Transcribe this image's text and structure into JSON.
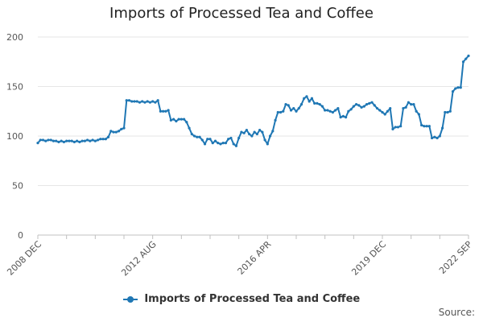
{
  "colors": {
    "series": "#1f77b4",
    "grid": "#e6e6e6",
    "axis": "#c0c0c0",
    "tick_text": "#555555"
  },
  "chart_data": {
    "type": "line",
    "title": "Imports of Processed Tea and Coffee",
    "xlabel": "",
    "ylabel": "",
    "ylim": [
      0,
      200
    ],
    "yticks": [
      0,
      50,
      100,
      150,
      200
    ],
    "x_tick_labels": [
      {
        "label": "2008 DEC",
        "date": "2008-12"
      },
      {
        "label": "2012 AUG",
        "date": "2012-08"
      },
      {
        "label": "2016 APR",
        "date": "2016-04"
      },
      {
        "label": "2019 DEC",
        "date": "2019-12"
      },
      {
        "label": "2022 SEP",
        "date": "2022-09"
      }
    ],
    "grid": true,
    "legend": "bottom",
    "series": [
      {
        "name": "Imports of Processed Tea and Coffee",
        "points": [
          [
            "2008-12",
            93
          ],
          [
            "2009-01",
            96
          ],
          [
            "2009-02",
            96
          ],
          [
            "2009-03",
            95
          ],
          [
            "2009-04",
            96
          ],
          [
            "2009-05",
            96
          ],
          [
            "2009-06",
            95
          ],
          [
            "2009-07",
            95
          ],
          [
            "2009-08",
            94
          ],
          [
            "2009-09",
            95
          ],
          [
            "2009-10",
            94
          ],
          [
            "2009-11",
            95
          ],
          [
            "2009-12",
            95
          ],
          [
            "2010-01",
            95
          ],
          [
            "2010-02",
            94
          ],
          [
            "2010-03",
            95
          ],
          [
            "2010-04",
            94
          ],
          [
            "2010-05",
            95
          ],
          [
            "2010-06",
            95
          ],
          [
            "2010-07",
            96
          ],
          [
            "2010-08",
            95
          ],
          [
            "2010-09",
            96
          ],
          [
            "2010-10",
            95
          ],
          [
            "2010-11",
            96
          ],
          [
            "2010-12",
            97
          ],
          [
            "2011-01",
            97
          ],
          [
            "2011-02",
            97
          ],
          [
            "2011-03",
            99
          ],
          [
            "2011-04",
            105
          ],
          [
            "2011-05",
            104
          ],
          [
            "2011-06",
            104
          ],
          [
            "2011-07",
            105
          ],
          [
            "2011-08",
            107
          ],
          [
            "2011-09",
            108
          ],
          [
            "2011-10",
            136
          ],
          [
            "2011-11",
            136
          ],
          [
            "2011-12",
            135
          ],
          [
            "2012-01",
            135
          ],
          [
            "2012-02",
            135
          ],
          [
            "2012-03",
            134
          ],
          [
            "2012-04",
            135
          ],
          [
            "2012-05",
            134
          ],
          [
            "2012-06",
            135
          ],
          [
            "2012-07",
            134
          ],
          [
            "2012-08",
            135
          ],
          [
            "2012-09",
            134
          ],
          [
            "2012-10",
            136
          ],
          [
            "2012-11",
            125
          ],
          [
            "2012-12",
            125
          ],
          [
            "2013-01",
            125
          ],
          [
            "2013-02",
            126
          ],
          [
            "2013-03",
            116
          ],
          [
            "2013-04",
            117
          ],
          [
            "2013-05",
            115
          ],
          [
            "2013-06",
            117
          ],
          [
            "2013-07",
            117
          ],
          [
            "2013-08",
            117
          ],
          [
            "2013-09",
            114
          ],
          [
            "2013-10",
            108
          ],
          [
            "2013-11",
            102
          ],
          [
            "2013-12",
            100
          ],
          [
            "2014-01",
            99
          ],
          [
            "2014-02",
            99
          ],
          [
            "2014-03",
            96
          ],
          [
            "2014-04",
            92
          ],
          [
            "2014-05",
            97
          ],
          [
            "2014-06",
            97
          ],
          [
            "2014-07",
            93
          ],
          [
            "2014-08",
            95
          ],
          [
            "2014-09",
            93
          ],
          [
            "2014-10",
            92
          ],
          [
            "2014-11",
            93
          ],
          [
            "2014-12",
            93
          ],
          [
            "2015-01",
            97
          ],
          [
            "2015-02",
            98
          ],
          [
            "2015-03",
            92
          ],
          [
            "2015-04",
            90
          ],
          [
            "2015-05",
            98
          ],
          [
            "2015-06",
            104
          ],
          [
            "2015-07",
            103
          ],
          [
            "2015-08",
            106
          ],
          [
            "2015-09",
            102
          ],
          [
            "2015-10",
            100
          ],
          [
            "2015-11",
            104
          ],
          [
            "2015-12",
            102
          ],
          [
            "2016-01",
            106
          ],
          [
            "2016-02",
            104
          ],
          [
            "2016-03",
            96
          ],
          [
            "2016-04",
            92
          ],
          [
            "2016-05",
            100
          ],
          [
            "2016-06",
            105
          ],
          [
            "2016-07",
            116
          ],
          [
            "2016-08",
            124
          ],
          [
            "2016-09",
            124
          ],
          [
            "2016-10",
            125
          ],
          [
            "2016-11",
            132
          ],
          [
            "2016-12",
            131
          ],
          [
            "2017-01",
            126
          ],
          [
            "2017-02",
            128
          ],
          [
            "2017-03",
            125
          ],
          [
            "2017-04",
            128
          ],
          [
            "2017-05",
            132
          ],
          [
            "2017-06",
            138
          ],
          [
            "2017-07",
            140
          ],
          [
            "2017-08",
            135
          ],
          [
            "2017-09",
            138
          ],
          [
            "2017-10",
            133
          ],
          [
            "2017-11",
            133
          ],
          [
            "2017-12",
            132
          ],
          [
            "2018-01",
            130
          ],
          [
            "2018-02",
            126
          ],
          [
            "2018-03",
            126
          ],
          [
            "2018-04",
            125
          ],
          [
            "2018-05",
            124
          ],
          [
            "2018-06",
            126
          ],
          [
            "2018-07",
            128
          ],
          [
            "2018-08",
            119
          ],
          [
            "2018-09",
            120
          ],
          [
            "2018-10",
            119
          ],
          [
            "2018-11",
            125
          ],
          [
            "2018-12",
            127
          ],
          [
            "2019-01",
            130
          ],
          [
            "2019-02",
            132
          ],
          [
            "2019-03",
            131
          ],
          [
            "2019-04",
            129
          ],
          [
            "2019-05",
            130
          ],
          [
            "2019-06",
            132
          ],
          [
            "2019-07",
            133
          ],
          [
            "2019-08",
            134
          ],
          [
            "2019-09",
            131
          ],
          [
            "2019-10",
            128
          ],
          [
            "2019-11",
            126
          ],
          [
            "2019-12",
            124
          ],
          [
            "2020-01",
            122
          ],
          [
            "2020-02",
            125
          ],
          [
            "2020-03",
            128
          ],
          [
            "2020-04",
            107
          ],
          [
            "2020-05",
            109
          ],
          [
            "2020-06",
            109
          ],
          [
            "2020-07",
            110
          ],
          [
            "2020-08",
            128
          ],
          [
            "2020-09",
            129
          ],
          [
            "2020-10",
            134
          ],
          [
            "2020-11",
            132
          ],
          [
            "2020-12",
            132
          ],
          [
            "2021-01",
            125
          ],
          [
            "2021-02",
            122
          ],
          [
            "2021-03",
            111
          ],
          [
            "2021-04",
            110
          ],
          [
            "2021-05",
            110
          ],
          [
            "2021-06",
            110
          ],
          [
            "2021-07",
            98
          ],
          [
            "2021-08",
            99
          ],
          [
            "2021-09",
            98
          ],
          [
            "2021-10",
            100
          ],
          [
            "2021-11",
            108
          ],
          [
            "2021-12",
            124
          ],
          [
            "2022-01",
            124
          ],
          [
            "2022-02",
            125
          ],
          [
            "2022-03",
            145
          ],
          [
            "2022-04",
            148
          ],
          [
            "2022-05",
            149
          ],
          [
            "2022-06",
            149
          ],
          [
            "2022-07",
            175
          ],
          [
            "2022-08",
            178
          ],
          [
            "2022-09",
            181
          ]
        ]
      }
    ]
  },
  "source_label": "Source:"
}
